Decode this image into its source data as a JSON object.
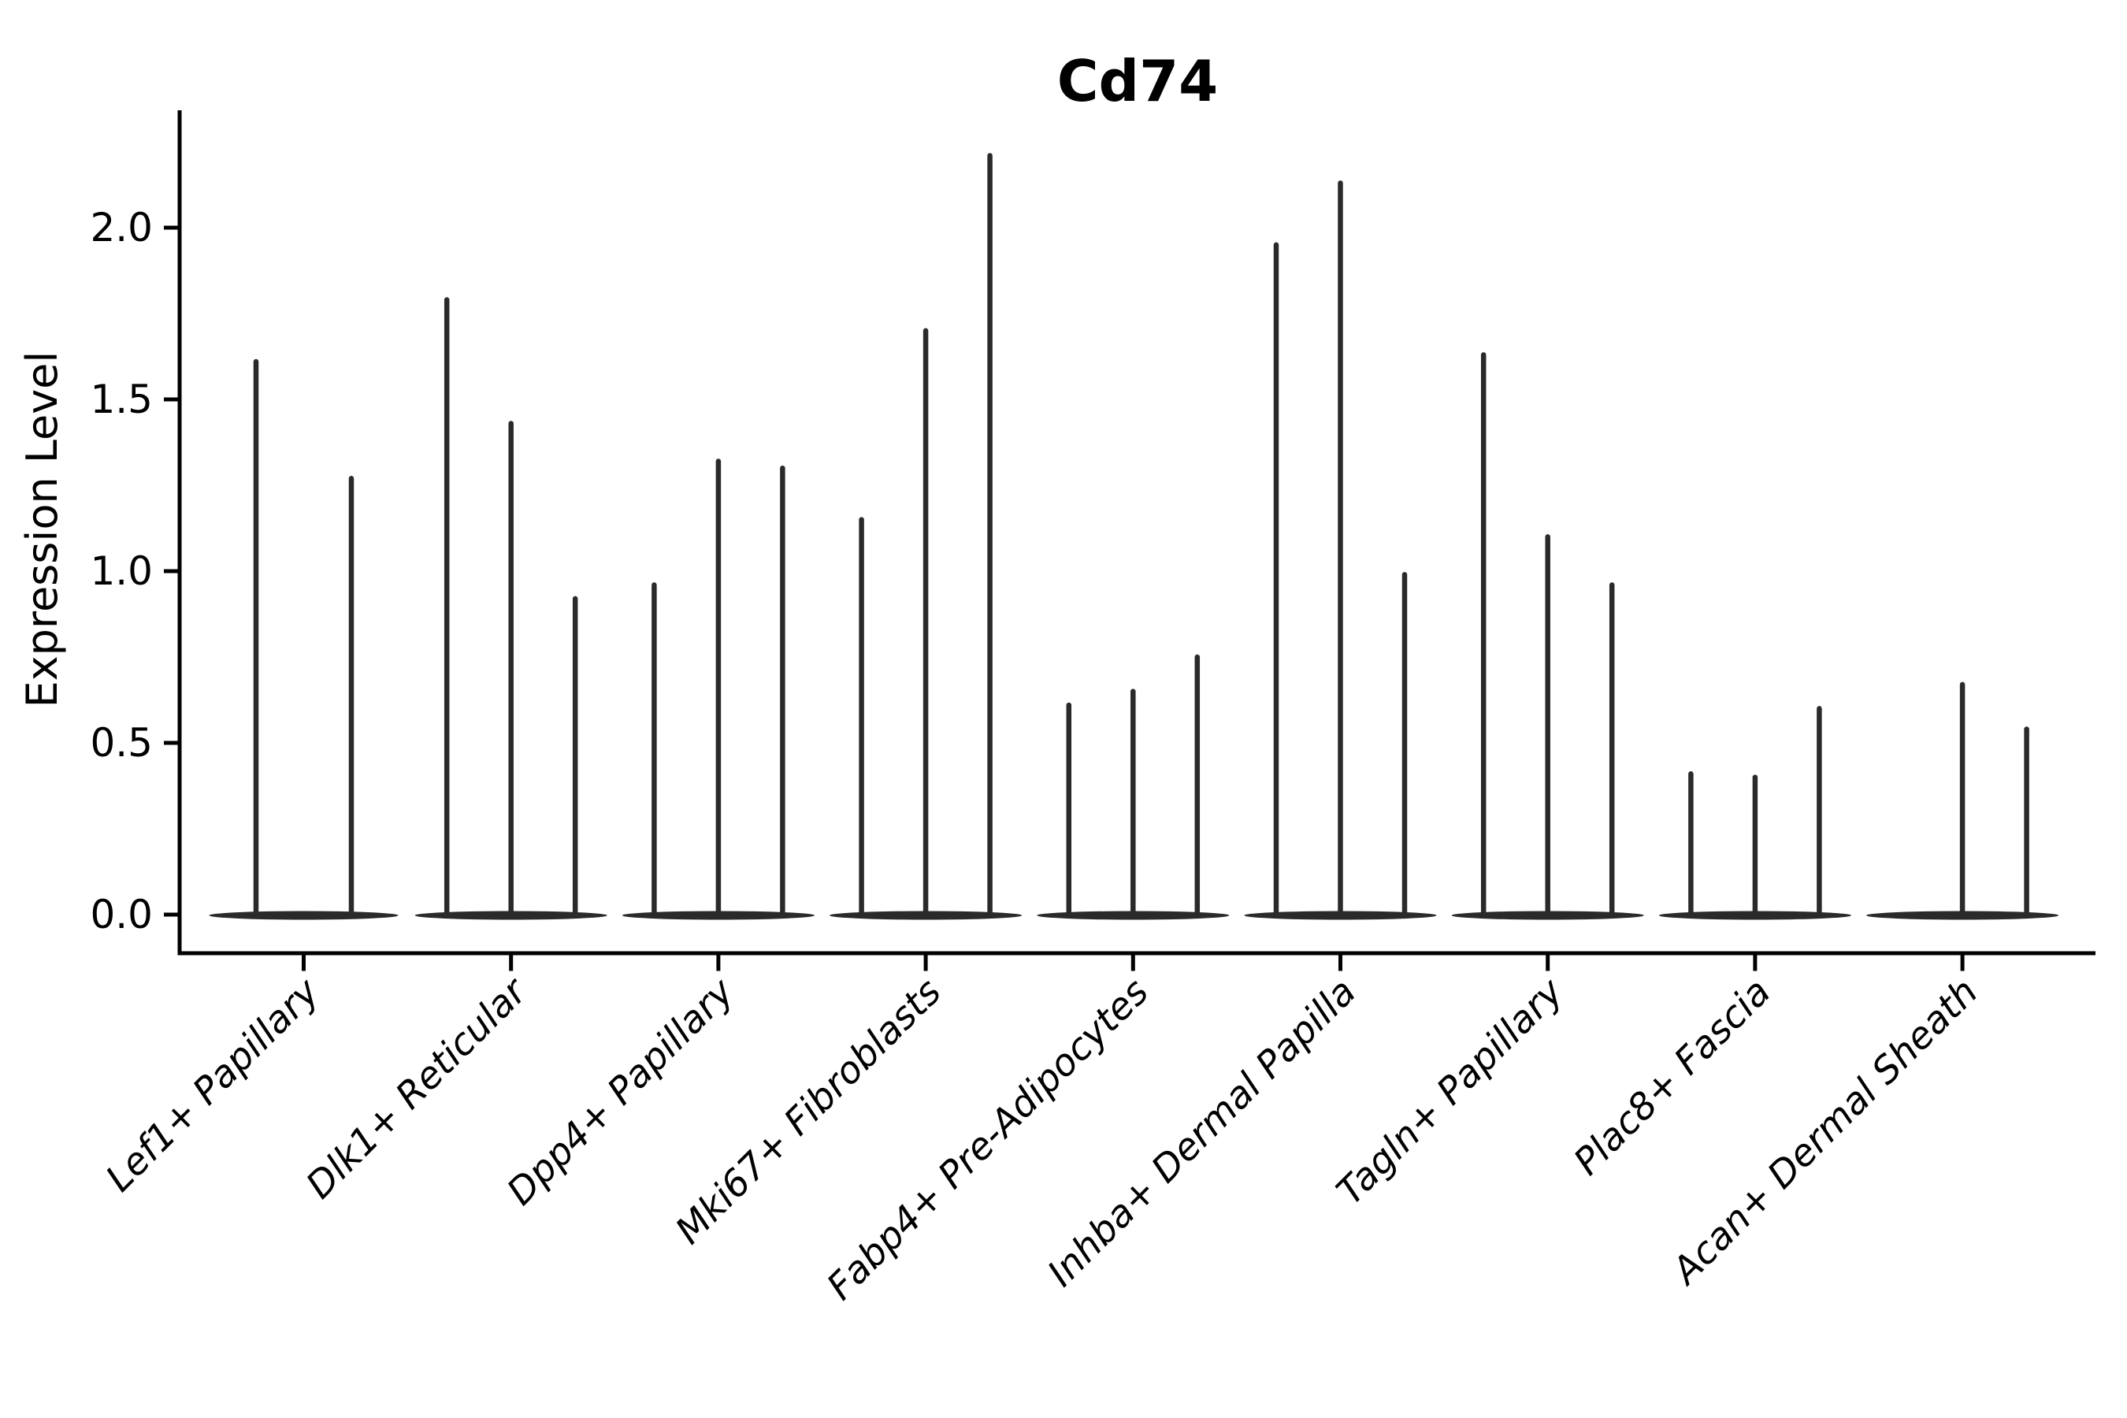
{
  "figure": {
    "background_color": "#ffffff",
    "axis_color": "#000000",
    "violin_color": "#2a2a2a"
  },
  "chart_data": {
    "type": "violin",
    "title": "Cd74",
    "xlabel": "",
    "ylabel": "Expression Level",
    "ylim": [
      0.0,
      2.34
    ],
    "grid": false,
    "legend_position": "none",
    "x_tick_rotation_deg": 45,
    "ytick_labels": [
      "0.0",
      "0.5",
      "1.0",
      "1.5",
      "2.0"
    ],
    "ytick_values": [
      0.0,
      0.5,
      1.0,
      1.5,
      2.0
    ],
    "categories": [
      "Lef1+ Papillary",
      "Dlk1+ Reticular",
      "Dpp4+ Papillary",
      "Mki67+ Fibroblasts",
      "Fabp4+ Pre-Adipocytes",
      "Inhba+ Dermal Papilla",
      "Tagln+ Papillary",
      "Plac8+ Fascia",
      "Acan+ Dermal Sheath"
    ],
    "groups": [
      {
        "category": "Lef1+ Papillary",
        "violins": [
          {
            "max": 1.61
          },
          {
            "max": 1.27
          }
        ]
      },
      {
        "category": "Dlk1+ Reticular",
        "violins": [
          {
            "max": 1.79
          },
          {
            "max": 1.43
          },
          {
            "max": 0.92
          }
        ]
      },
      {
        "category": "Dpp4+ Papillary",
        "violins": [
          {
            "max": 0.96
          },
          {
            "max": 1.32
          },
          {
            "max": 1.3
          }
        ]
      },
      {
        "category": "Mki67+ Fibroblasts",
        "violins": [
          {
            "max": 1.15
          },
          {
            "max": 1.7
          },
          {
            "max": 2.21
          }
        ]
      },
      {
        "category": "Fabp4+ Pre-Adipocytes",
        "violins": [
          {
            "max": 0.61
          },
          {
            "max": 0.65
          },
          {
            "max": 0.75
          }
        ]
      },
      {
        "category": "Inhba+ Dermal Papilla",
        "violins": [
          {
            "max": 1.95
          },
          {
            "max": 2.13
          },
          {
            "max": 0.99
          }
        ]
      },
      {
        "category": "Tagln+ Papillary",
        "violins": [
          {
            "max": 1.63
          },
          {
            "max": 1.1
          },
          {
            "max": 0.96
          }
        ]
      },
      {
        "category": "Plac8+ Fascia",
        "violins": [
          {
            "max": 0.41
          },
          {
            "max": 0.4
          },
          {
            "max": 0.6
          }
        ]
      },
      {
        "category": "Acan+ Dermal Sheath",
        "violins": [
          {
            "max": 0.0
          },
          {
            "max": 0.67
          },
          {
            "max": 0.54
          }
        ]
      }
    ],
    "description": "Violin plot of Cd74 expression level per cluster; each cluster shows 2-3 thin violins (flat base at 0 with a narrow spike up to the maximum expressing cells)."
  }
}
